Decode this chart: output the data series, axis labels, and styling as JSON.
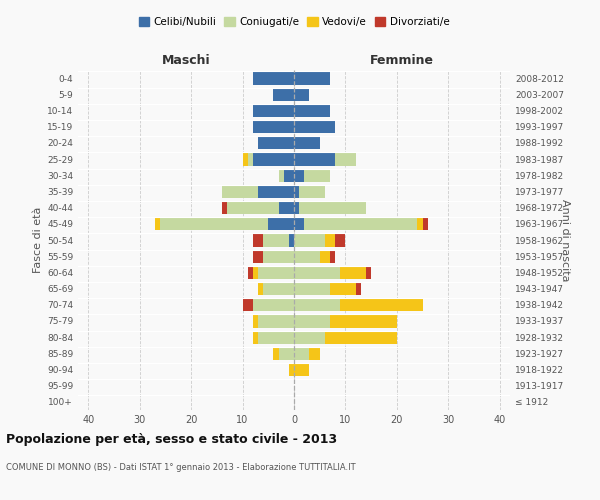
{
  "age_groups": [
    "100+",
    "95-99",
    "90-94",
    "85-89",
    "80-84",
    "75-79",
    "70-74",
    "65-69",
    "60-64",
    "55-59",
    "50-54",
    "45-49",
    "40-44",
    "35-39",
    "30-34",
    "25-29",
    "20-24",
    "15-19",
    "10-14",
    "5-9",
    "0-4"
  ],
  "birth_years": [
    "≤ 1912",
    "1913-1917",
    "1918-1922",
    "1923-1927",
    "1928-1932",
    "1933-1937",
    "1938-1942",
    "1943-1947",
    "1948-1952",
    "1953-1957",
    "1958-1962",
    "1963-1967",
    "1968-1972",
    "1973-1977",
    "1978-1982",
    "1983-1987",
    "1988-1992",
    "1993-1997",
    "1998-2002",
    "2003-2007",
    "2008-2012"
  ],
  "maschi": {
    "celibi": [
      0,
      0,
      0,
      0,
      0,
      0,
      0,
      0,
      0,
      0,
      1,
      5,
      3,
      7,
      2,
      8,
      7,
      8,
      8,
      4,
      8
    ],
    "coniugati": [
      0,
      0,
      0,
      3,
      7,
      7,
      8,
      6,
      7,
      6,
      5,
      21,
      10,
      7,
      1,
      1,
      0,
      0,
      0,
      0,
      0
    ],
    "vedovi": [
      0,
      0,
      1,
      1,
      1,
      1,
      0,
      1,
      1,
      0,
      0,
      1,
      0,
      0,
      0,
      1,
      0,
      0,
      0,
      0,
      0
    ],
    "divorziati": [
      0,
      0,
      0,
      0,
      0,
      0,
      2,
      0,
      1,
      2,
      2,
      0,
      1,
      0,
      0,
      0,
      0,
      0,
      0,
      0,
      0
    ]
  },
  "femmine": {
    "nubili": [
      0,
      0,
      0,
      0,
      0,
      0,
      0,
      0,
      0,
      0,
      0,
      2,
      1,
      1,
      2,
      8,
      5,
      8,
      7,
      3,
      7
    ],
    "coniugate": [
      0,
      0,
      0,
      3,
      6,
      7,
      9,
      7,
      9,
      5,
      6,
      22,
      13,
      5,
      5,
      4,
      0,
      0,
      0,
      0,
      0
    ],
    "vedove": [
      0,
      0,
      3,
      2,
      14,
      13,
      16,
      5,
      5,
      2,
      2,
      1,
      0,
      0,
      0,
      0,
      0,
      0,
      0,
      0,
      0
    ],
    "divorziate": [
      0,
      0,
      0,
      0,
      0,
      0,
      0,
      1,
      1,
      1,
      2,
      1,
      0,
      0,
      0,
      0,
      0,
      0,
      0,
      0,
      0
    ]
  },
  "colors": {
    "celibi": "#3d6fa8",
    "coniugati": "#c5d9a0",
    "vedovi": "#f5c518",
    "divorziati": "#c0392b"
  },
  "xlim": 42,
  "title": "Popolazione per età, sesso e stato civile - 2013",
  "subtitle": "COMUNE DI MONNO (BS) - Dati ISTAT 1° gennaio 2013 - Elaborazione TUTTITALIA.IT",
  "xlabel_left": "Maschi",
  "xlabel_right": "Femmine",
  "ylabel_left": "Fasce di età",
  "ylabel_right": "Anni di nascita",
  "bg_color": "#f9f9f9",
  "legend_labels": [
    "Celibi/Nubili",
    "Coniugati/e",
    "Vedovi/e",
    "Divorziati/e"
  ],
  "tick_vals": [
    -40,
    -30,
    -20,
    -10,
    0,
    10,
    20,
    30,
    40
  ]
}
